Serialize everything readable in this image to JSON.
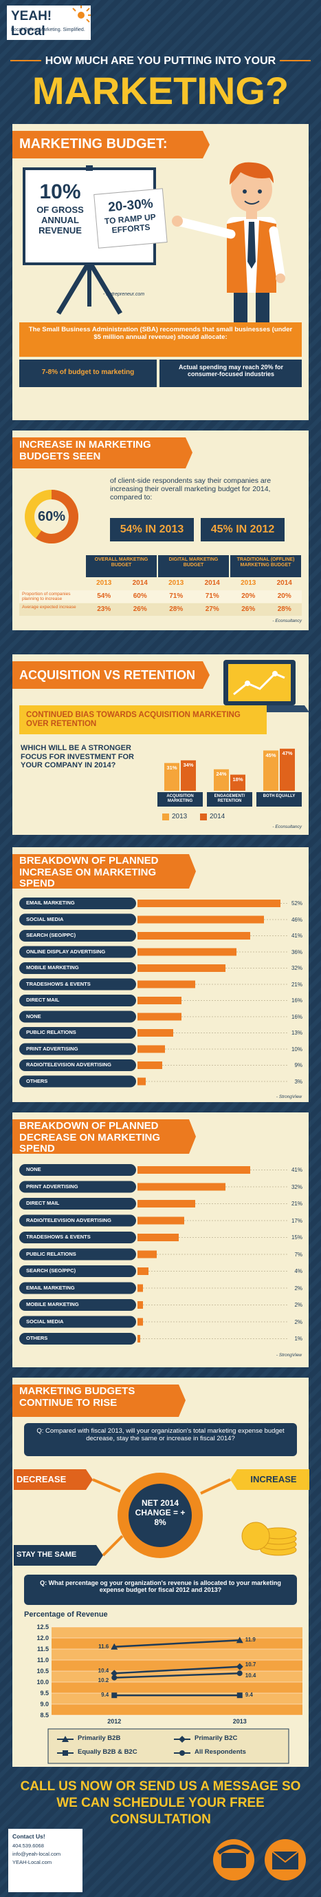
{
  "header": {
    "logo": "YEAH! Local",
    "tagline": "Local Online Marketing. Simplified.",
    "kicker": "HOW MUCH ARE YOU PUTTING INTO YOUR",
    "title": "MARKETING?"
  },
  "budget": {
    "heading": "MARKETING BUDGET:",
    "sign1_figure": "10%",
    "sign1_text": "OF GROSS ANNUAL REVENUE",
    "sign2_figure": "20-30%",
    "sign2_text": "TO RAMP UP EFFORTS",
    "source": "- Entrepreneur.com",
    "sba": "The Small Business Administration (SBA) recommends that small businesses (under $5 million annual revenue) should allocate:",
    "allocation": "7-8% of budget to marketing",
    "actual": "Actual spending may reach 20% for consumer-focused industries"
  },
  "increase": {
    "heading": "INCREASE IN MARKETING BUDGETS SEEN",
    "donut": {
      "value": 60,
      "label": "60%"
    },
    "text": "of client-side respondents say their companies are increasing their overall marketing budget for 2014, compared to:",
    "compare": [
      "54% IN 2013",
      "45% IN 2012"
    ],
    "table": {
      "groups": [
        "OVERALL MARKETING BUDGET",
        "DIGITAL MARKETING BUDGET",
        "TRADITIONAL (OFFLINE) MARKETING BUDGET"
      ],
      "years": [
        "2013",
        "2014",
        "2013",
        "2014",
        "2013",
        "2014"
      ],
      "rows": [
        {
          "label": "Proportion of companies planning to increase",
          "cells": [
            "54%",
            "60%",
            "71%",
            "71%",
            "20%",
            "20%"
          ]
        },
        {
          "label": "Average expected increase",
          "cells": [
            "23%",
            "26%",
            "28%",
            "27%",
            "26%",
            "28%"
          ]
        }
      ]
    },
    "source": "- Econsultancy"
  },
  "acquisition": {
    "heading": "ACQUISITION VS RETENTION",
    "banner": "CONTINUED BIAS TOWARDS ACQUISITION MARKETING OVER RETENTION"
  },
  "rise": {
    "heading": "MARKETING BUDGETS CONTINUE TO RISE",
    "question1": "Q: Compared with fiscal 2013, will your organization's total marketing expense budget decrease, stay the same or increase in fiscal 2014?",
    "decrease": "DECREASE",
    "stay": "STAY THE SAME",
    "increase": "INCREASE",
    "net_change": "NET 2014 CHANGE = + 8%",
    "question2": "Q: What percentage og your organization's revenue is allocated to your marketing expense budget for fiscal 2012 and 2013?"
  },
  "chart_data": [
    {
      "type": "bar",
      "title": "WHICH WILL BE A STRONGER FOCUS FOR INVESTMENT FOR YOUR COMPANY IN 2014?",
      "categories": [
        "ACQUISITION MARKETING",
        "ENGAGEMENT/ RETENTION",
        "BOTH EQUALLY"
      ],
      "series": [
        {
          "name": "2013",
          "color": "#f5a53a",
          "values": [
            31,
            24,
            45
          ],
          "value_labels": [
            "31%",
            "24%",
            "45%"
          ]
        },
        {
          "name": "2014",
          "color": "#e0631c",
          "values": [
            34,
            18,
            47
          ],
          "value_labels": [
            "34%",
            "18%",
            "47%"
          ]
        }
      ],
      "source": "- Econsultancy"
    },
    {
      "type": "hbar",
      "title": "BREAKDOWN OF PLANNED INCREASE ON MARKETING SPEND",
      "color": "#ef7d22",
      "categories": [
        "EMAIL MARKETING",
        "SOCIAL MEDIA",
        "SEARCH (SEO/PPC)",
        "ONLINE DISPLAY ADVERTISING",
        "MOBILE MARKETING",
        "TRADESHOWS & EVENTS",
        "DIRECT MAIL",
        "NONE",
        "PUBLIC RELATIONS",
        "PRINT ADVERTISING",
        "RADIO/TELEVISION ADVERTISING",
        "OTHERS"
      ],
      "values": [
        52,
        46,
        41,
        36,
        32,
        21,
        16,
        16,
        13,
        10,
        9,
        3
      ],
      "value_labels": [
        "52%",
        "46%",
        "41%",
        "36%",
        "32%",
        "21%",
        "16%",
        "16%",
        "13%",
        "10%",
        "9%",
        "3%"
      ],
      "source": "- StrongView"
    },
    {
      "type": "hbar",
      "title": "BREAKDOWN OF PLANNED DECREASE ON MARKETING SPEND",
      "color": "#ef7d22",
      "categories": [
        "NONE",
        "PRINT ADVERTISING",
        "DIRECT MAIL",
        "RADIO/TELEVISION ADVERTISING",
        "TRADESHOWS & EVENTS",
        "PUBLIC RELATIONS",
        "SEARCH (SEO/PPC)",
        "EMAIL MARKETING",
        "MOBILE MARKETING",
        "SOCIAL MEDIA",
        "OTHERS"
      ],
      "values": [
        41,
        32,
        21,
        17,
        15,
        7,
        4,
        2,
        2,
        2,
        1
      ],
      "value_labels": [
        "41%",
        "32%",
        "21%",
        "17%",
        "15%",
        "7%",
        "4%",
        "2%",
        "2%",
        "2%",
        "1%"
      ],
      "source": "- StrongView"
    },
    {
      "type": "line",
      "title": "Percentage of Revenue",
      "categories": [
        "2012",
        "2013"
      ],
      "ylim": [
        8.5,
        12.5
      ],
      "yticks": [
        8.5,
        {
          "value": 9,
          "label": "9.0"
        },
        9.5,
        {
          "value": 10,
          "label": "10.0"
        },
        10.5,
        {
          "value": 11,
          "label": "11.0"
        },
        11.5,
        {
          "value": 12,
          "label": "12.0"
        },
        12.5
      ],
      "series": [
        {
          "name": "Primarily B2B",
          "color": "#1f3b57",
          "marker": "triangle",
          "values": [
            11.6,
            11.9
          ]
        },
        {
          "name": "Primarily B2C",
          "color": "#1f3b57",
          "marker": "diamond",
          "values": [
            10.4,
            10.7
          ]
        },
        {
          "name": "Equally B2B & B2C",
          "color": "#1f3b57",
          "marker": "square",
          "values": [
            9.4,
            9.4
          ]
        },
        {
          "name": "All Respondents",
          "color": "#1f3b57",
          "marker": "circle",
          "values": [
            10.2,
            10.4
          ]
        }
      ]
    }
  ],
  "footer": {
    "cta": "CALL US NOW OR SEND US A MESSAGE SO WE CAN SCHEDULE YOUR FREE CONSULTATION",
    "contact": "Contact Us!",
    "phone": "404.539.6068",
    "email": "info@yeah-local.com",
    "site": "YEAH-Local.com"
  }
}
